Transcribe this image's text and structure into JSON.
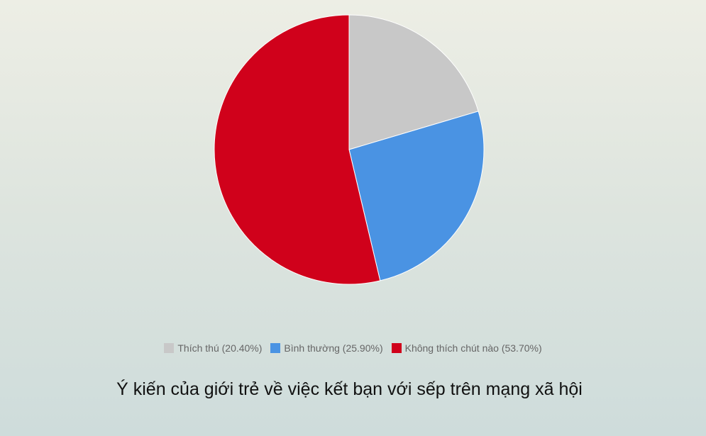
{
  "chart_data": {
    "type": "pie",
    "title": "Ý kiến của giới trẻ về việc kết bạn với sếp trên mạng xã hội",
    "slices": [
      {
        "label": "Thích thú",
        "value": 20.4,
        "legend": "Thích thú (20.40%)",
        "color": "#c8c8c8"
      },
      {
        "label": "Bình thường",
        "value": 25.9,
        "legend": "Bình thường (25.90%)",
        "color": "#4a93e3"
      },
      {
        "label": "Không thích chút nào",
        "value": 53.7,
        "legend": "Không thích chút nào (53.70%)",
        "color": "#d0011b"
      }
    ],
    "start_angle": "top",
    "direction": "clockwise",
    "legend_position": "bottom"
  }
}
